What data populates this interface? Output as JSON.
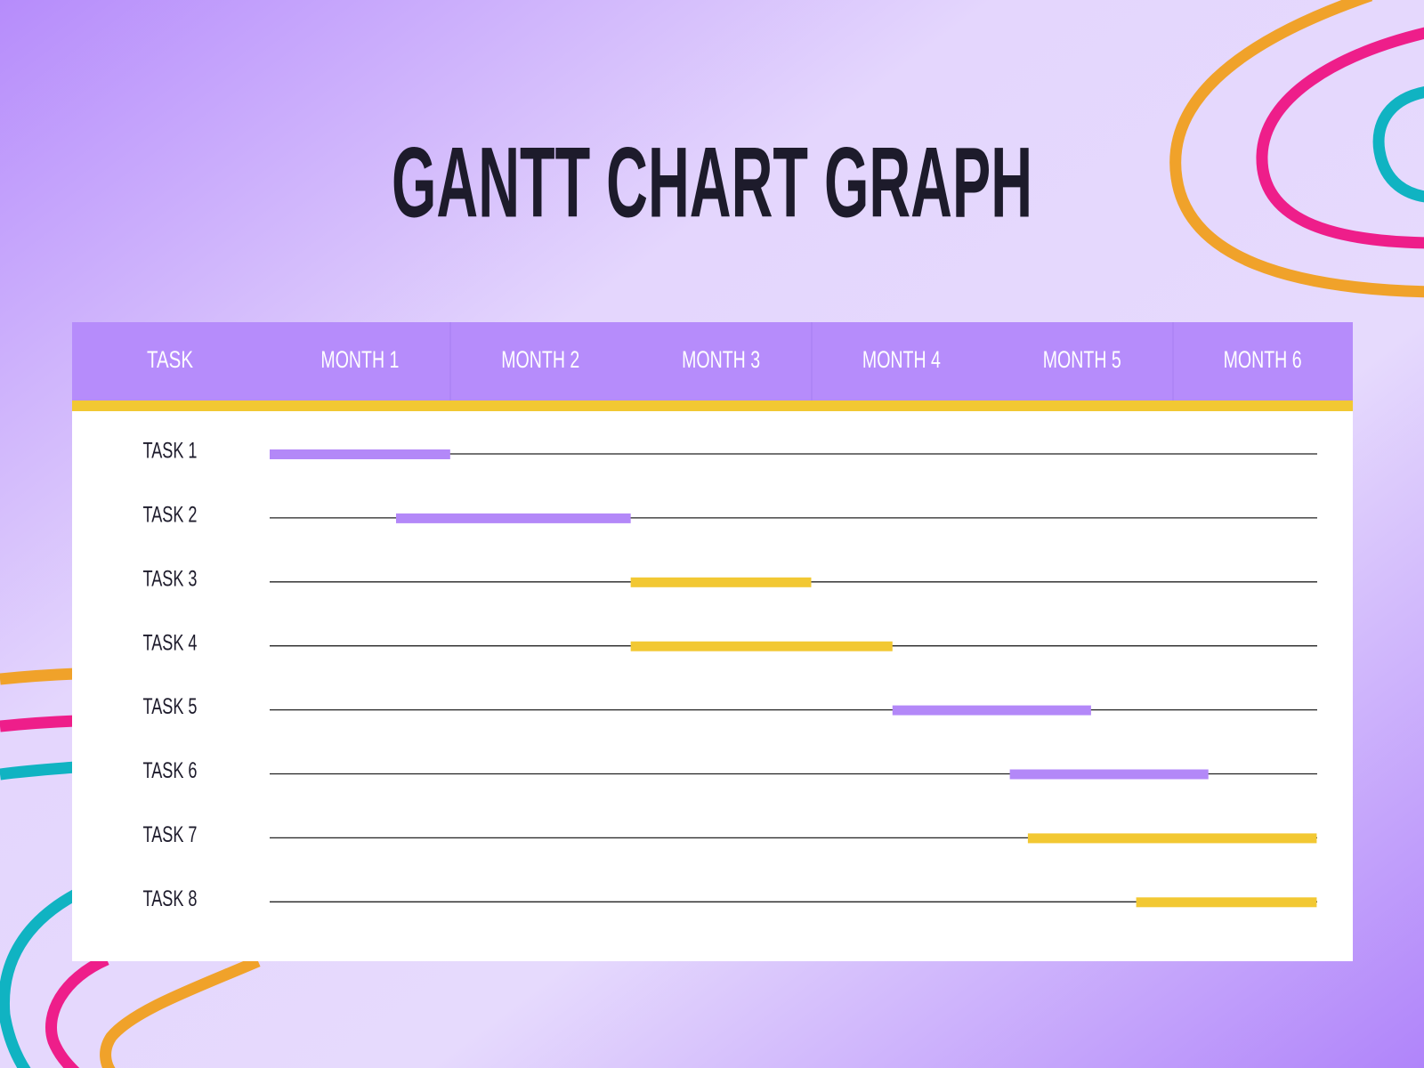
{
  "chart_data": {
    "type": "gantt",
    "title": "GANTT CHART GRAPH",
    "task_header": "TASK",
    "months": [
      "MONTH 1",
      "MONTH 2",
      "MONTH 3",
      "MONTH 4",
      "MONTH 5",
      "MONTH 6"
    ],
    "xlim": [
      0,
      6
    ],
    "tasks": [
      {
        "name": "TASK 1",
        "start": 0,
        "end": 1.0,
        "color": "#b388f8"
      },
      {
        "name": "TASK 2",
        "start": 0.7,
        "end": 2.0,
        "color": "#b388f8"
      },
      {
        "name": "TASK 3",
        "start": 2.0,
        "end": 3.0,
        "color": "#f2c833"
      },
      {
        "name": "TASK 4",
        "start": 2.0,
        "end": 3.45,
        "color": "#f2c833"
      },
      {
        "name": "TASK 5",
        "start": 3.45,
        "end": 4.55,
        "color": "#b388f8"
      },
      {
        "name": "TASK 6",
        "start": 4.1,
        "end": 5.2,
        "color": "#b388f8"
      },
      {
        "name": "TASK 7",
        "start": 4.2,
        "end": 5.8,
        "color": "#f2c833"
      },
      {
        "name": "TASK 8",
        "start": 4.8,
        "end": 5.8,
        "color": "#f2c833"
      }
    ]
  }
}
